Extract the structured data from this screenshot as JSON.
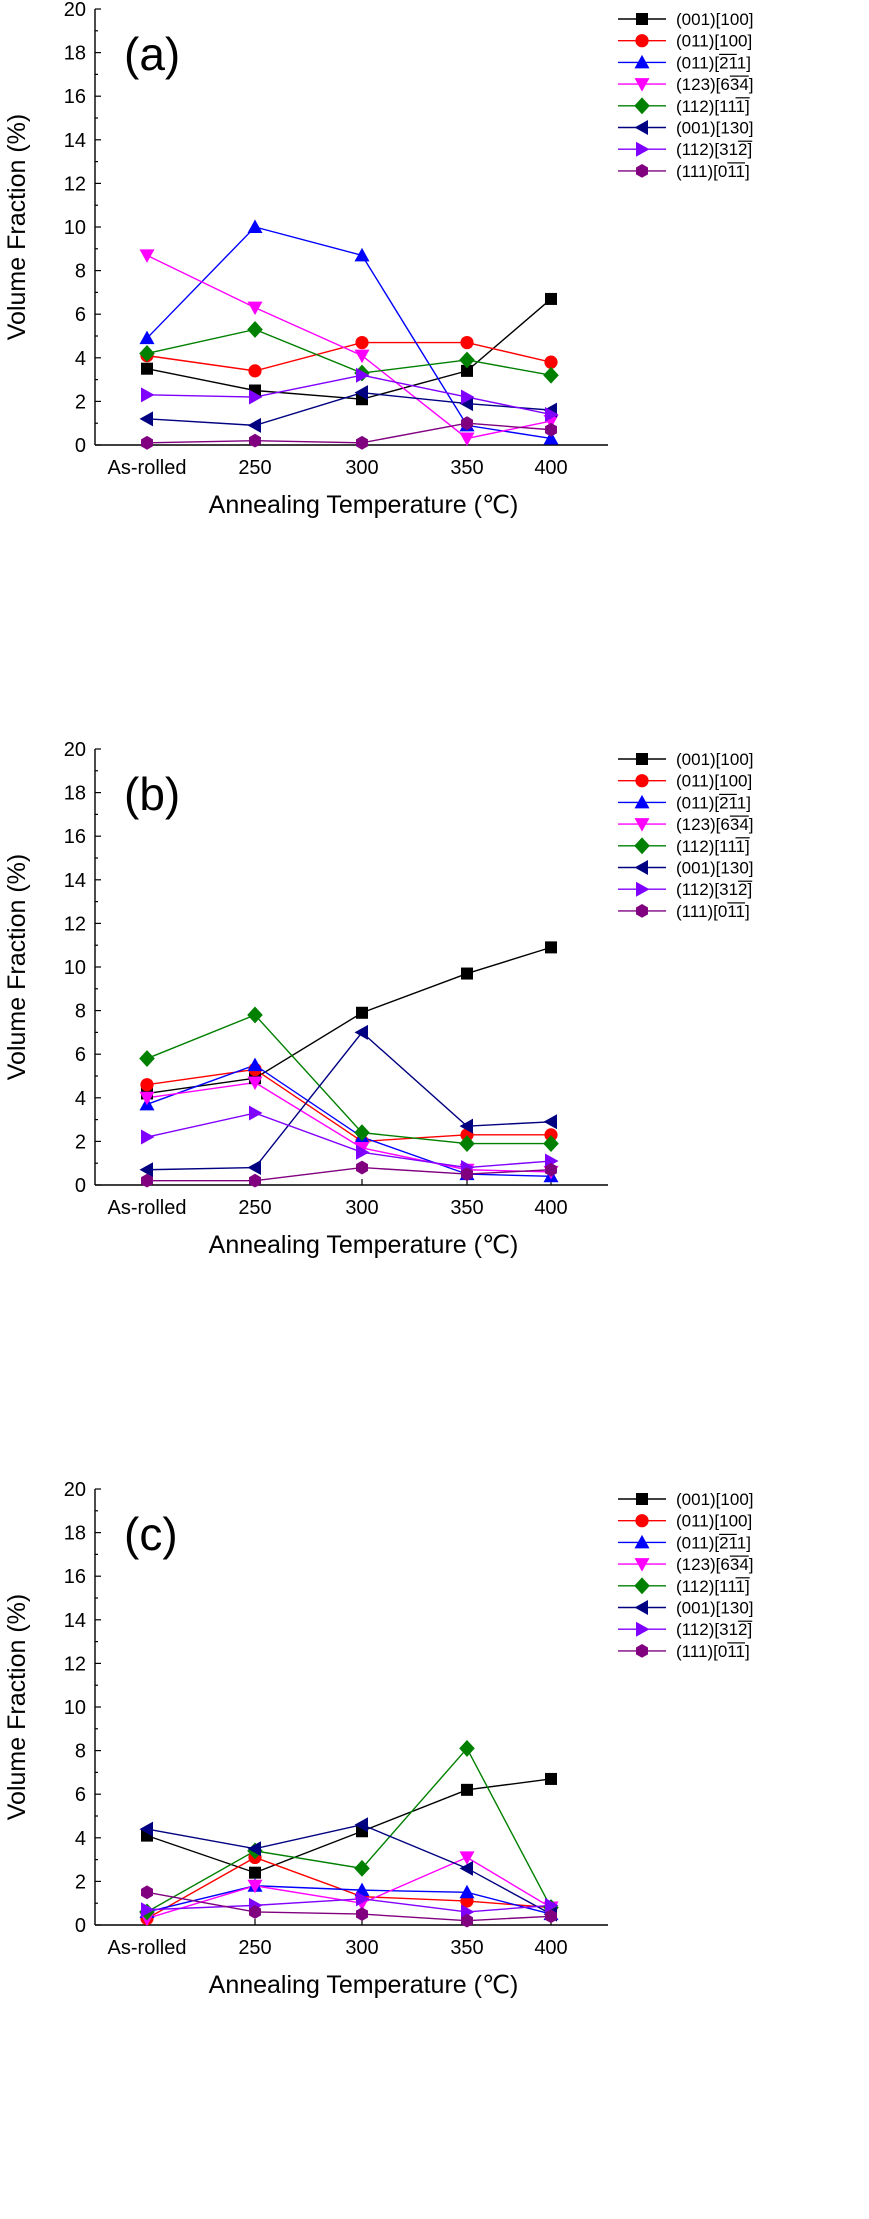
{
  "chart_data": [
    {
      "type": "line",
      "panel_label": "(a)",
      "xlabel": "Annealing Temperature (℃)",
      "ylabel": "Volume Fraction (%)",
      "categories": [
        "As-rolled",
        "250",
        "300",
        "350",
        "400"
      ],
      "ylim": [
        0,
        20
      ],
      "yticks": [
        0,
        2,
        4,
        6,
        8,
        10,
        12,
        14,
        16,
        18,
        20
      ],
      "legend_position": "top-right",
      "series": [
        {
          "name": "(001)[100]",
          "color": "#000000",
          "marker": "square",
          "values": [
            3.5,
            2.5,
            2.1,
            3.4,
            6.7
          ]
        },
        {
          "name": "(011)[100]",
          "color": "#ff0000",
          "marker": "circle",
          "values": [
            4.1,
            3.4,
            4.7,
            4.7,
            3.8
          ]
        },
        {
          "name": "(011)[211]",
          "color": "#0000ff",
          "marker": "triangle-up",
          "overline": [
            6,
            7
          ],
          "values": [
            4.9,
            10.0,
            8.7,
            0.9,
            0.3
          ]
        },
        {
          "name": "(123)[634]",
          "color": "#ff00ff",
          "marker": "triangle-down",
          "overline": [
            7,
            8
          ],
          "values": [
            8.7,
            6.3,
            4.1,
            0.3,
            1.1
          ]
        },
        {
          "name": "(112)[111]",
          "color": "#008000",
          "marker": "diamond",
          "overline": [
            8,
            9
          ],
          "values": [
            4.2,
            5.3,
            3.3,
            3.9,
            3.2
          ]
        },
        {
          "name": "(001)[130]",
          "color": "#000080",
          "marker": "triangle-left",
          "values": [
            1.2,
            0.9,
            2.4,
            1.9,
            1.6
          ]
        },
        {
          "name": "(112)[312]",
          "color": "#8000ff",
          "marker": "triangle-right",
          "overline": [
            8,
            9
          ],
          "values": [
            2.3,
            2.2,
            3.2,
            2.2,
            1.4
          ]
        },
        {
          "name": "(111)[011]",
          "color": "#800080",
          "marker": "hexagon",
          "overline": [
            7,
            8
          ],
          "values": [
            0.1,
            0.2,
            0.1,
            1.0,
            0.7
          ]
        }
      ]
    },
    {
      "type": "line",
      "panel_label": "(b)",
      "xlabel": "Annealing Temperature (℃)",
      "ylabel": "Volume Fraction (%)",
      "categories": [
        "As-rolled",
        "250",
        "300",
        "350",
        "400"
      ],
      "ylim": [
        0,
        20
      ],
      "yticks": [
        0,
        2,
        4,
        6,
        8,
        10,
        12,
        14,
        16,
        18,
        20
      ],
      "legend_position": "top-right",
      "series": [
        {
          "name": "(001)[100]",
          "color": "#000000",
          "marker": "square",
          "values": [
            4.2,
            4.9,
            7.9,
            9.7,
            10.9
          ]
        },
        {
          "name": "(011)[100]",
          "color": "#ff0000",
          "marker": "circle",
          "values": [
            4.6,
            5.3,
            2.0,
            2.3,
            2.3
          ]
        },
        {
          "name": "(011)[211]",
          "color": "#0000ff",
          "marker": "triangle-up",
          "overline": [
            6,
            7
          ],
          "values": [
            3.7,
            5.5,
            2.2,
            0.5,
            0.4
          ]
        },
        {
          "name": "(123)[634]",
          "color": "#ff00ff",
          "marker": "triangle-down",
          "overline": [
            7,
            8
          ],
          "values": [
            4.0,
            4.7,
            1.7,
            0.7,
            0.6
          ]
        },
        {
          "name": "(112)[111]",
          "color": "#008000",
          "marker": "diamond",
          "overline": [
            8,
            9
          ],
          "values": [
            5.8,
            7.8,
            2.4,
            1.9,
            1.9
          ]
        },
        {
          "name": "(001)[130]",
          "color": "#000080",
          "marker": "triangle-left",
          "values": [
            0.7,
            0.8,
            7.0,
            2.7,
            2.9
          ]
        },
        {
          "name": "(112)[312]",
          "color": "#8000ff",
          "marker": "triangle-right",
          "overline": [
            8,
            9
          ],
          "values": [
            2.2,
            3.3,
            1.5,
            0.8,
            1.1
          ]
        },
        {
          "name": "(111)[011]",
          "color": "#800080",
          "marker": "hexagon",
          "overline": [
            7,
            8
          ],
          "values": [
            0.2,
            0.2,
            0.8,
            0.5,
            0.7
          ]
        }
      ]
    },
    {
      "type": "line",
      "panel_label": "(c)",
      "xlabel": "Annealing Temperature (℃)",
      "ylabel": "Volume Fraction (%)",
      "categories": [
        "As-rolled",
        "250",
        "300",
        "350",
        "400"
      ],
      "ylim": [
        0,
        20
      ],
      "yticks": [
        0,
        2,
        4,
        6,
        8,
        10,
        12,
        14,
        16,
        18,
        20
      ],
      "legend_position": "top-right",
      "series": [
        {
          "name": "(001)[100]",
          "color": "#000000",
          "marker": "square",
          "values": [
            4.1,
            2.4,
            4.3,
            6.2,
            6.7
          ]
        },
        {
          "name": "(011)[100]",
          "color": "#ff0000",
          "marker": "circle",
          "values": [
            0.3,
            3.1,
            1.3,
            1.1,
            0.8
          ]
        },
        {
          "name": "(011)[211]",
          "color": "#0000ff",
          "marker": "triangle-up",
          "overline": [
            6,
            7
          ],
          "values": [
            0.6,
            1.8,
            1.6,
            1.5,
            0.5
          ]
        },
        {
          "name": "(123)[634]",
          "color": "#ff00ff",
          "marker": "triangle-down",
          "overline": [
            7,
            8
          ],
          "values": [
            0.3,
            1.8,
            1.0,
            3.1,
            0.8
          ]
        },
        {
          "name": "(112)[111]",
          "color": "#008000",
          "marker": "diamond",
          "overline": [
            8,
            9
          ],
          "values": [
            0.6,
            3.4,
            2.6,
            8.1,
            0.8
          ]
        },
        {
          "name": "(001)[130]",
          "color": "#000080",
          "marker": "triangle-left",
          "values": [
            4.4,
            3.5,
            4.6,
            2.6,
            0.5
          ]
        },
        {
          "name": "(112)[312]",
          "color": "#8000ff",
          "marker": "triangle-right",
          "overline": [
            8,
            9
          ],
          "values": [
            0.7,
            0.9,
            1.2,
            0.6,
            0.9
          ]
        },
        {
          "name": "(111)[011]",
          "color": "#800080",
          "marker": "hexagon",
          "overline": [
            7,
            8
          ],
          "values": [
            1.5,
            0.6,
            0.5,
            0.2,
            0.4
          ]
        }
      ]
    }
  ]
}
